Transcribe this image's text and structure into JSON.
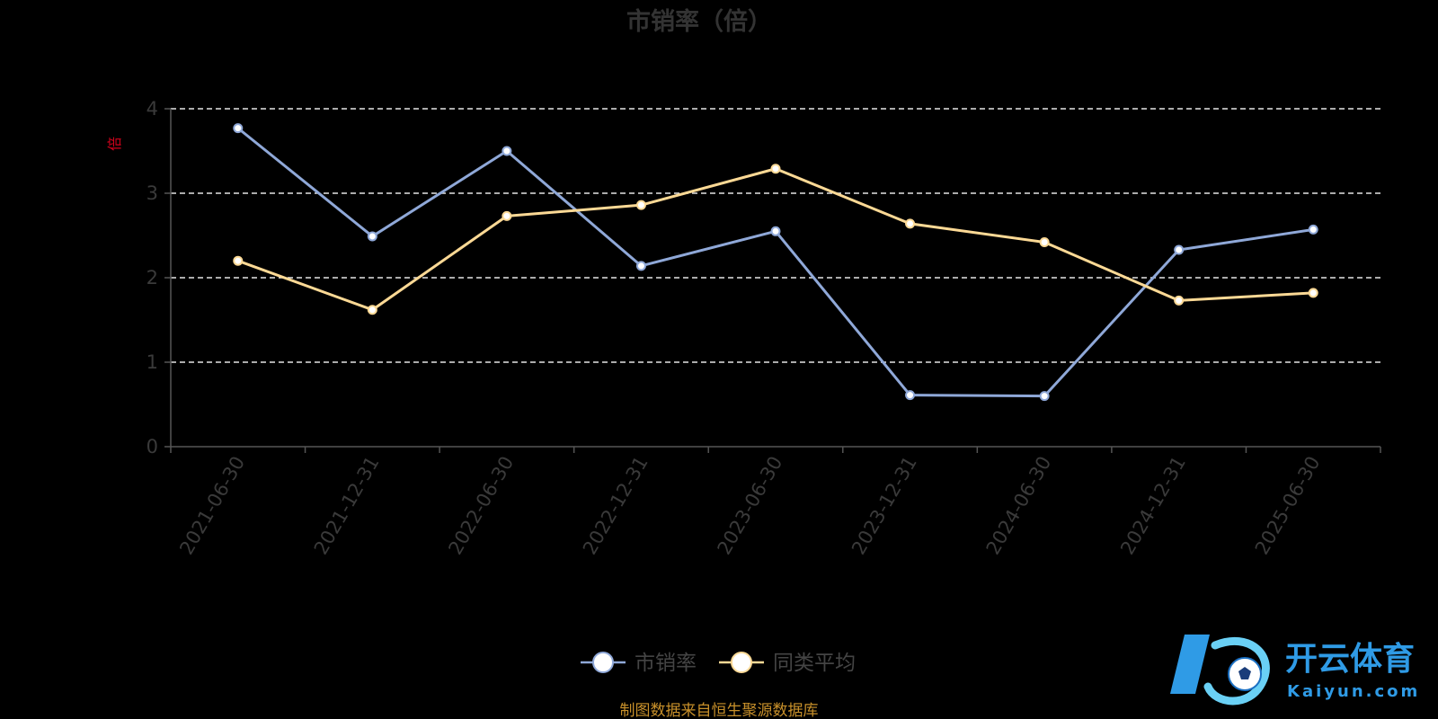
{
  "chart_data": {
    "type": "line",
    "title": "市销率（倍）",
    "ylabel": "倍",
    "categories": [
      "2021-06-30",
      "2021-12-31",
      "2022-06-30",
      "2022-12-31",
      "2023-06-30",
      "2023-12-31",
      "2024-06-30",
      "2024-12-31",
      "2025-06-30"
    ],
    "ylim": [
      0,
      4
    ],
    "yticks": [
      "0",
      "1",
      "2",
      "3",
      "4"
    ],
    "grid": true,
    "legend_position": "bottom-center",
    "series": [
      {
        "name": "市销率",
        "color": "#8fa8d8",
        "values": [
          3.77,
          2.49,
          3.5,
          2.14,
          2.55,
          0.61,
          0.6,
          2.33,
          2.57
        ]
      },
      {
        "name": "同类平均",
        "color": "#fcd995",
        "values": [
          2.2,
          1.62,
          2.73,
          2.86,
          3.29,
          2.64,
          2.42,
          1.73,
          1.82
        ]
      }
    ]
  },
  "source_note": "制图数据来自恒生聚源数据库",
  "watermark": {
    "cn_text": "开云体育",
    "en_text": "Kaiyun.com",
    "color": "#2f9be6"
  }
}
